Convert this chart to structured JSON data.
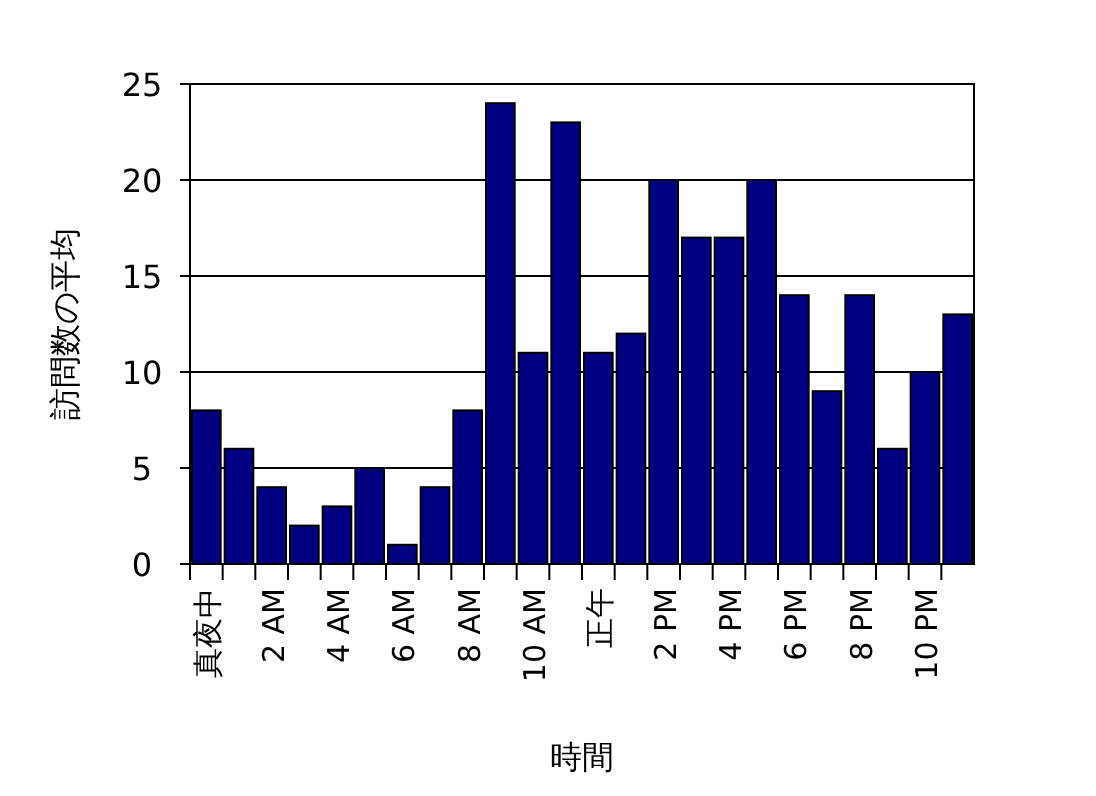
{
  "chart_data": {
    "type": "bar",
    "xlabel": "時間",
    "ylabel": "訪問数の平均",
    "categories": [
      "真夜中",
      null,
      "2 AM",
      null,
      "4 AM",
      null,
      "6 AM",
      null,
      "8 AM",
      null,
      "10 AM",
      null,
      "正午",
      null,
      "2 PM",
      null,
      "4 PM",
      null,
      "6 PM",
      null,
      "8 PM",
      null,
      "10 PM",
      null
    ],
    "values": [
      8,
      6,
      4,
      2,
      3,
      5,
      1,
      4,
      8,
      24,
      11,
      23,
      11,
      12,
      20,
      17,
      17,
      20,
      14,
      9,
      14,
      6,
      10,
      13
    ],
    "color": "#000080",
    "ylim": [
      0,
      25
    ],
    "yticks": [
      0,
      5,
      10,
      15,
      20,
      25
    ],
    "grid": "y"
  }
}
